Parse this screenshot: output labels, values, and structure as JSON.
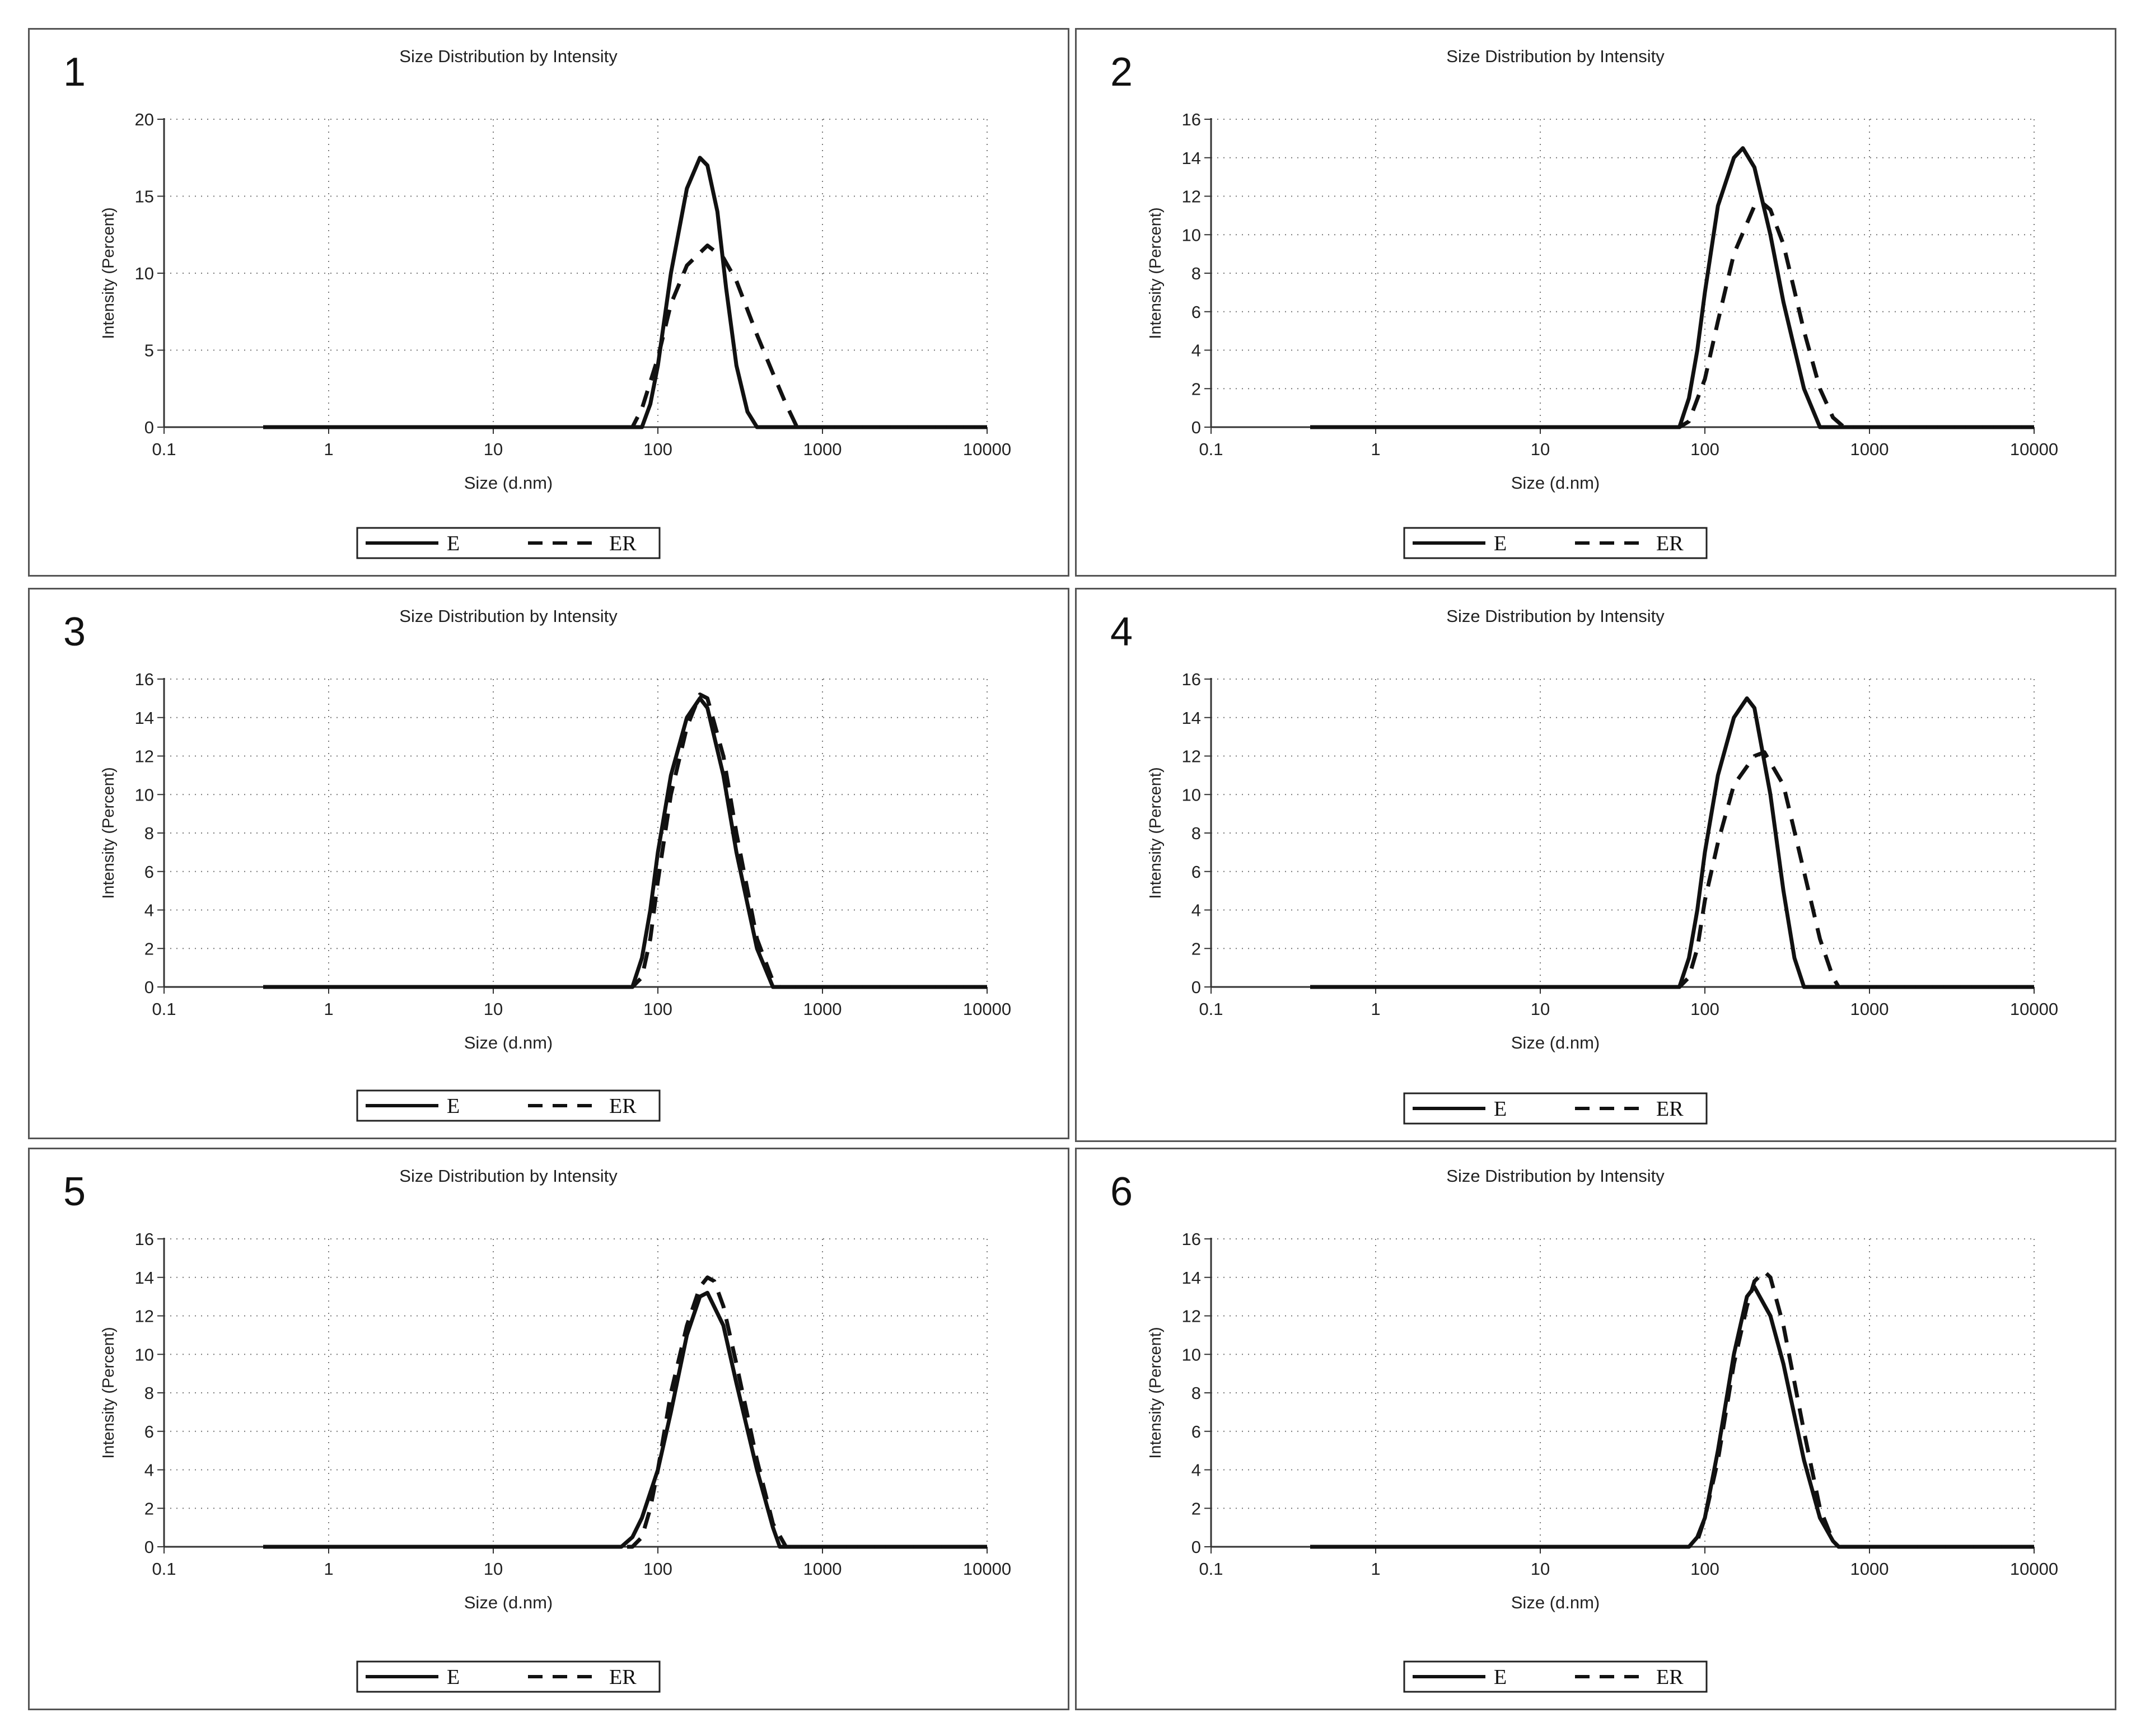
{
  "chart_data": [
    {
      "type": "line",
      "panel_label": "1",
      "title": "Size Distribution by Intensity",
      "xlabel": "Size (d.nm)",
      "ylabel": "Intensity (Percent)",
      "xscale": "log",
      "xlim": [
        0.1,
        10000
      ],
      "ylim": [
        0,
        20
      ],
      "xticks": [
        0.1,
        1,
        10,
        100,
        1000,
        10000
      ],
      "xtick_labels": [
        "0.1",
        "1",
        "10",
        "100",
        "1000",
        "10000"
      ],
      "yticks": [
        0,
        5,
        10,
        15,
        20
      ],
      "ytick_labels": [
        "0",
        "5",
        "10",
        "15",
        "20"
      ],
      "grid": true,
      "legend": "bottom-center",
      "series": [
        {
          "name": "E",
          "style": "solid",
          "x": [
            0.4,
            60,
            80,
            90,
            100,
            120,
            150,
            180,
            200,
            230,
            260,
            300,
            350,
            400,
            10000
          ],
          "y": [
            0,
            0,
            0,
            1.5,
            4,
            10,
            15.5,
            17.5,
            17,
            14,
            9,
            4,
            1,
            0,
            0
          ]
        },
        {
          "name": "ER",
          "style": "dashed",
          "x": [
            0.4,
            60,
            70,
            80,
            100,
            120,
            150,
            200,
            250,
            300,
            400,
            500,
            600,
            700,
            10000
          ],
          "y": [
            0,
            0,
            0,
            1.2,
            4.5,
            8,
            10.5,
            11.8,
            11,
            9.5,
            6,
            3.5,
            1.5,
            0,
            0
          ]
        }
      ]
    },
    {
      "type": "line",
      "panel_label": "2",
      "title": "Size Distribution by Intensity",
      "xlabel": "Size (d.nm)",
      "ylabel": "Intensity (Percent)",
      "xscale": "log",
      "xlim": [
        0.1,
        10000
      ],
      "ylim": [
        0,
        16
      ],
      "xticks": [
        0.1,
        1,
        10,
        100,
        1000,
        10000
      ],
      "xtick_labels": [
        "0.1",
        "1",
        "10",
        "100",
        "1000",
        "10000"
      ],
      "yticks": [
        0,
        2,
        4,
        6,
        8,
        10,
        12,
        14,
        16
      ],
      "ytick_labels": [
        "0",
        "2",
        "4",
        "6",
        "8",
        "10",
        "12",
        "14",
        "16"
      ],
      "grid": true,
      "legend": "bottom-center",
      "series": [
        {
          "name": "E",
          "style": "solid",
          "x": [
            0.4,
            60,
            70,
            80,
            90,
            100,
            120,
            150,
            170,
            200,
            250,
            300,
            400,
            500,
            10000
          ],
          "y": [
            0,
            0,
            0,
            1.5,
            4,
            7,
            11.5,
            14,
            14.5,
            13.5,
            10,
            6.5,
            2,
            0,
            0
          ]
        },
        {
          "name": "ER",
          "style": "dashed",
          "x": [
            0.4,
            70,
            80,
            100,
            120,
            150,
            200,
            220,
            250,
            300,
            400,
            500,
            600,
            700,
            10000
          ],
          "y": [
            0,
            0,
            0.3,
            2.5,
            5.5,
            9,
            11.5,
            11.7,
            11.3,
            9.5,
            5,
            2,
            0.5,
            0,
            0
          ]
        }
      ]
    },
    {
      "type": "line",
      "panel_label": "3",
      "title": "Size Distribution by Intensity",
      "xlabel": "Size (d.nm)",
      "ylabel": "Intensity (Percent)",
      "xscale": "log",
      "xlim": [
        0.1,
        10000
      ],
      "ylim": [
        0,
        16
      ],
      "xticks": [
        0.1,
        1,
        10,
        100,
        1000,
        10000
      ],
      "xtick_labels": [
        "0.1",
        "1",
        "10",
        "100",
        "1000",
        "10000"
      ],
      "yticks": [
        0,
        2,
        4,
        6,
        8,
        10,
        12,
        14,
        16
      ],
      "ytick_labels": [
        "0",
        "2",
        "4",
        "6",
        "8",
        "10",
        "12",
        "14",
        "16"
      ],
      "grid": true,
      "legend": "bottom-center",
      "series": [
        {
          "name": "E",
          "style": "solid",
          "x": [
            0.4,
            60,
            70,
            80,
            90,
            100,
            120,
            150,
            180,
            200,
            250,
            300,
            400,
            500,
            10000
          ],
          "y": [
            0,
            0,
            0,
            1.5,
            4,
            7,
            11,
            14,
            15,
            14.5,
            11,
            7,
            2,
            0,
            0
          ]
        },
        {
          "name": "ER",
          "style": "dashed",
          "x": [
            0.4,
            70,
            80,
            90,
            100,
            120,
            150,
            180,
            200,
            250,
            300,
            400,
            500,
            550,
            10000
          ],
          "y": [
            0,
            0,
            0.5,
            2.5,
            5.5,
            10,
            13.5,
            15.2,
            15,
            12,
            8,
            2.5,
            0.3,
            0,
            0
          ]
        }
      ]
    },
    {
      "type": "line",
      "panel_label": "4",
      "title": "Size Distribution by Intensity",
      "xlabel": "Size (d.nm)",
      "ylabel": "Intensity (Percent)",
      "xscale": "log",
      "xlim": [
        0.1,
        10000
      ],
      "ylim": [
        0,
        16
      ],
      "xticks": [
        0.1,
        1,
        10,
        100,
        1000,
        10000
      ],
      "xtick_labels": [
        "0.1",
        "1",
        "10",
        "100",
        "1000",
        "10000"
      ],
      "yticks": [
        0,
        2,
        4,
        6,
        8,
        10,
        12,
        14,
        16
      ],
      "ytick_labels": [
        "0",
        "2",
        "4",
        "6",
        "8",
        "10",
        "12",
        "14",
        "16"
      ],
      "grid": true,
      "legend": "bottom-center",
      "series": [
        {
          "name": "E",
          "style": "solid",
          "x": [
            0.4,
            60,
            70,
            80,
            90,
            100,
            120,
            150,
            180,
            200,
            250,
            300,
            350,
            400,
            10000
          ],
          "y": [
            0,
            0,
            0,
            1.5,
            4,
            7,
            11,
            14,
            15,
            14.5,
            10,
            5,
            1.5,
            0,
            0
          ]
        },
        {
          "name": "ER",
          "style": "dashed",
          "x": [
            0.4,
            70,
            80,
            90,
            100,
            120,
            150,
            200,
            230,
            300,
            400,
            500,
            600,
            650,
            10000
          ],
          "y": [
            0,
            0,
            0.5,
            2,
            4.5,
            7.5,
            10.5,
            12,
            12.2,
            10.5,
            6,
            2.5,
            0.5,
            0,
            0
          ]
        }
      ]
    },
    {
      "type": "line",
      "panel_label": "5",
      "title": "Size Distribution by Intensity",
      "xlabel": "Size (d.nm)",
      "ylabel": "Intensity (Percent)",
      "xscale": "log",
      "xlim": [
        0.1,
        10000
      ],
      "ylim": [
        0,
        16
      ],
      "xticks": [
        0.1,
        1,
        10,
        100,
        1000,
        10000
      ],
      "xtick_labels": [
        "0.1",
        "1",
        "10",
        "100",
        "1000",
        "10000"
      ],
      "yticks": [
        0,
        2,
        4,
        6,
        8,
        10,
        12,
        14,
        16
      ],
      "ytick_labels": [
        "0",
        "2",
        "4",
        "6",
        "8",
        "10",
        "12",
        "14",
        "16"
      ],
      "grid": true,
      "legend": "bottom-center",
      "series": [
        {
          "name": "E",
          "style": "solid",
          "x": [
            0.4,
            50,
            60,
            70,
            80,
            100,
            120,
            150,
            180,
            200,
            250,
            300,
            400,
            500,
            550,
            10000
          ],
          "y": [
            0,
            0,
            0,
            0.5,
            1.5,
            4,
            7,
            11,
            13,
            13.2,
            11.5,
            8.5,
            4,
            1,
            0,
            0
          ]
        },
        {
          "name": "ER",
          "style": "dashed",
          "x": [
            0.4,
            70,
            80,
            90,
            100,
            120,
            150,
            180,
            200,
            220,
            250,
            300,
            400,
            500,
            600,
            10000
          ],
          "y": [
            0,
            0,
            0.5,
            2,
            4,
            8,
            11.5,
            13.5,
            14,
            13.8,
            12.5,
            9.5,
            4.5,
            1.2,
            0,
            0
          ]
        }
      ]
    },
    {
      "type": "line",
      "panel_label": "6",
      "title": "Size Distribution by Intensity",
      "xlabel": "Size (d.nm)",
      "ylabel": "Intensity (Percent)",
      "xscale": "log",
      "xlim": [
        0.1,
        10000
      ],
      "ylim": [
        0,
        16
      ],
      "xticks": [
        0.1,
        1,
        10,
        100,
        1000,
        10000
      ],
      "xtick_labels": [
        "0.1",
        "1",
        "10",
        "100",
        "1000",
        "10000"
      ],
      "yticks": [
        0,
        2,
        4,
        6,
        8,
        10,
        12,
        14,
        16
      ],
      "ytick_labels": [
        "0",
        "2",
        "4",
        "6",
        "8",
        "10",
        "12",
        "14",
        "16"
      ],
      "grid": true,
      "legend": "bottom-center",
      "series": [
        {
          "name": "E",
          "style": "solid",
          "x": [
            0.4,
            70,
            80,
            90,
            100,
            120,
            150,
            180,
            200,
            250,
            300,
            400,
            500,
            600,
            650,
            10000
          ],
          "y": [
            0,
            0,
            0,
            0.5,
            1.5,
            5,
            10,
            13,
            13.5,
            12,
            9.5,
            4.5,
            1.5,
            0.3,
            0,
            0
          ]
        },
        {
          "name": "ER",
          "style": "dashed",
          "x": [
            0.4,
            80,
            90,
            100,
            120,
            150,
            180,
            200,
            230,
            250,
            300,
            400,
            500,
            600,
            650,
            10000
          ],
          "y": [
            0,
            0,
            0.3,
            1.5,
            4.5,
            9.5,
            12.5,
            13.8,
            14.3,
            14,
            11.5,
            6,
            2,
            0.3,
            0,
            0
          ]
        }
      ]
    }
  ]
}
